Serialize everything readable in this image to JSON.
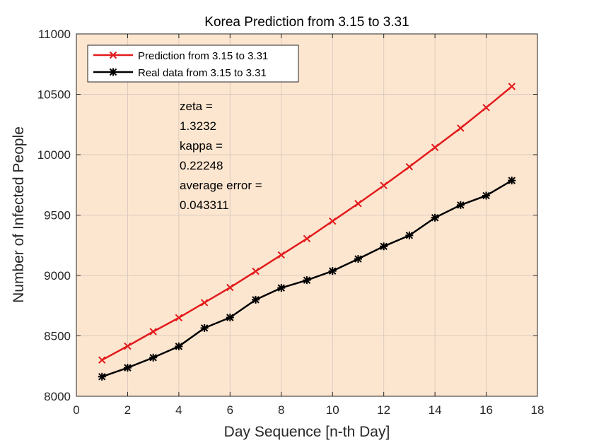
{
  "chart_data": {
    "type": "line",
    "title": "Korea Prediction from 3.15 to 3.31",
    "xlabel": "Day Sequence [n-th Day]",
    "ylabel": "Number of Infected People",
    "xlim": [
      0,
      18
    ],
    "ylim": [
      8000,
      11000
    ],
    "xticks": [
      "0",
      "2",
      "4",
      "6",
      "8",
      "10",
      "12",
      "14",
      "16",
      "18"
    ],
    "yticks": [
      "8000",
      "8500",
      "9000",
      "9500",
      "10000",
      "10500",
      "11000"
    ],
    "grid": true,
    "legend_position": "top-left",
    "background_color": "#FDE6D0",
    "x": [
      1,
      2,
      3,
      4,
      5,
      6,
      7,
      8,
      9,
      10,
      11,
      12,
      13,
      14,
      15,
      16,
      17
    ],
    "series": [
      {
        "name": "Prediction from 3.15 to 3.31",
        "color": "#E31A1C",
        "marker": "x",
        "values": [
          8300,
          8415,
          8535,
          8650,
          8775,
          8900,
          9035,
          9170,
          9305,
          9450,
          9595,
          9745,
          9900,
          10060,
          10220,
          10390,
          10565
        ]
      },
      {
        "name": "Real data from 3.15 to 3.31",
        "color": "#000000",
        "marker": "asterisk",
        "values": [
          8162,
          8236,
          8320,
          8413,
          8565,
          8652,
          8799,
          8897,
          8961,
          9037,
          9137,
          9241,
          9332,
          9478,
          9583,
          9661,
          9786
        ]
      }
    ],
    "annotations": [
      "zeta =",
      "1.3232",
      "kappa =",
      "0.22248",
      "average error =",
      "0.043311"
    ]
  }
}
